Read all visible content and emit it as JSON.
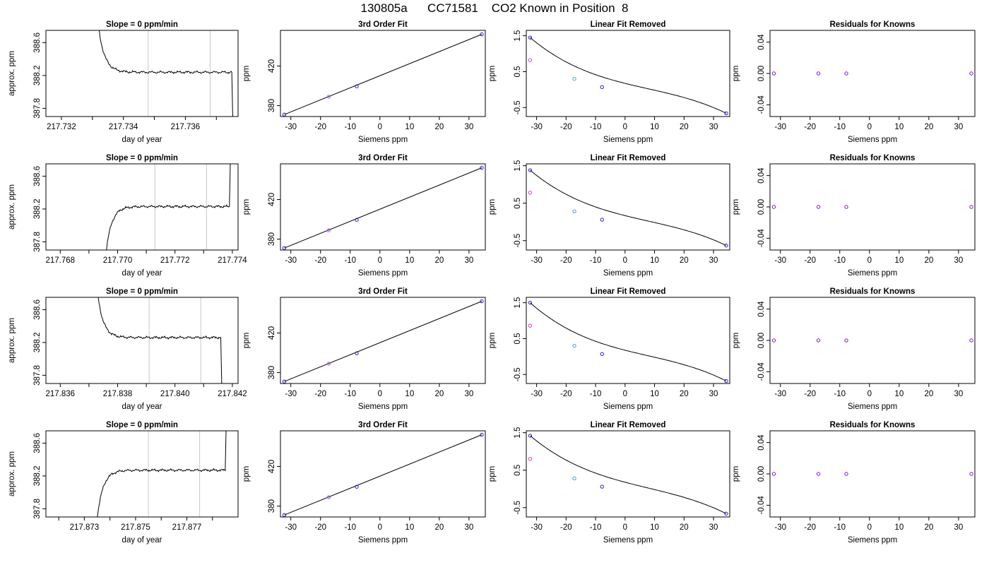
{
  "title": "130805a      CC71581    CO2 Known in Position  8",
  "chart_data": [
    {
      "type": "line",
      "title": "Slope =  0  ppm/min",
      "xlabel": "day of year",
      "ylabel": "approx. ppm",
      "xlim": [
        217.7315,
        217.7377
      ],
      "ylim": [
        387.7,
        388.75
      ],
      "xticks": [
        217.732,
        217.734,
        217.736
      ],
      "xtick_labels": [
        "217.732",
        "217.734",
        "217.736"
      ],
      "xticks_minor": [
        217.733,
        217.735,
        217.737
      ],
      "yticks": [
        387.8,
        388.2,
        388.6
      ],
      "ytick_labels": [
        "387.8",
        "388.2",
        "388.6"
      ],
      "vlines": [
        217.7348,
        217.7368
      ],
      "shape": "decay",
      "x_start": 217.7331,
      "x_end": 217.7375,
      "plateau": 388.24,
      "grid": false
    },
    {
      "type": "line",
      "title": "3rd Order Fit",
      "xlabel": "Siemens ppm",
      "ylabel": "ppm",
      "xlim": [
        -33.5,
        35.5
      ],
      "ylim": [
        369,
        456
      ],
      "xticks": [
        -30,
        -20,
        -10,
        0,
        10,
        20,
        30
      ],
      "xtick_labels": [
        "-30",
        "-20",
        "-10",
        "0",
        "10",
        "20",
        "30"
      ],
      "yticks": [
        380,
        420
      ],
      "ytick_labels": [
        "380",
        "420"
      ],
      "points": [
        {
          "x": -32.2,
          "y": 371.0,
          "color": "#1f1fd0"
        },
        {
          "x": -17.2,
          "y": 389.0,
          "color": "#a05cf0"
        },
        {
          "x": -7.8,
          "y": 399.5,
          "color": "#1f1fd0"
        },
        {
          "x": 34.3,
          "y": 452.0,
          "color": "#1f1fd0"
        }
      ],
      "grid": false
    },
    {
      "type": "line",
      "title": "Linear Fit Removed",
      "xlabel": "Siemens ppm",
      "ylabel": "ppm",
      "xlim": [
        -33.5,
        35.5
      ],
      "ylim": [
        -0.75,
        1.65
      ],
      "xticks": [
        -30,
        -20,
        -10,
        0,
        10,
        20,
        30
      ],
      "xtick_labels": [
        "-30",
        "-20",
        "-10",
        "0",
        "10",
        "20",
        "30"
      ],
      "yticks": [
        -0.5,
        0.5,
        1.5
      ],
      "ytick_labels": [
        "-0.5",
        "0.5",
        "1.5"
      ],
      "curve_cubic": [
        1.45,
        -0.66
      ],
      "points": [
        {
          "x": -32.2,
          "y": 1.45,
          "color": "#1f1fd0"
        },
        {
          "x": -32.2,
          "y": 0.82,
          "color": "#d040d0"
        },
        {
          "x": -17.2,
          "y": 0.3,
          "color": "#3aa0e0"
        },
        {
          "x": -7.8,
          "y": 0.07,
          "color": "#1f1fd0"
        },
        {
          "x": 34.3,
          "y": -0.66,
          "color": "#1f1fd0"
        }
      ],
      "grid": false
    },
    {
      "type": "scatter",
      "title": "Residuals for Knowns",
      "xlabel": "Siemens ppm",
      "ylabel": "ppm",
      "xlim": [
        -33.5,
        35.5
      ],
      "ylim": [
        -0.055,
        0.055
      ],
      "xticks": [
        -30,
        -20,
        -10,
        0,
        10,
        20,
        30
      ],
      "xtick_labels": [
        "-30",
        "-20",
        "-10",
        "0",
        "10",
        "20",
        "30"
      ],
      "yticks": [
        -0.04,
        0.0,
        0.04
      ],
      "ytick_labels": [
        "-0.04",
        "0.00",
        "0.04"
      ],
      "points": [
        {
          "x": -32.2,
          "y": 0.0,
          "color": "#8010e0"
        },
        {
          "x": -17.2,
          "y": 0.0,
          "color": "#8010e0"
        },
        {
          "x": -7.8,
          "y": 0.0,
          "color": "#8010e0"
        },
        {
          "x": 34.3,
          "y": 0.0,
          "color": "#8010e0"
        }
      ],
      "grid": false
    },
    {
      "type": "line",
      "title": "Slope =  0  ppm/min",
      "xlabel": "day of year",
      "ylabel": "approx. ppm",
      "xlim": [
        217.7675,
        217.7742
      ],
      "ylim": [
        387.7,
        388.75
      ],
      "xticks": [
        217.768,
        217.77,
        217.772,
        217.774
      ],
      "xtick_labels": [
        "217.768",
        "217.770",
        "217.772",
        "217.774"
      ],
      "xticks_minor": [
        217.769,
        217.771,
        217.773
      ],
      "yticks": [
        387.8,
        388.2,
        388.6
      ],
      "ytick_labels": [
        "387.8",
        "388.2",
        "388.6"
      ],
      "vlines": [
        217.7713,
        217.7731
      ],
      "shape": "rise",
      "x_start": 217.7695,
      "x_end": 217.7739,
      "plateau": 388.23,
      "grid": false
    },
    {
      "type": "line",
      "title": "3rd Order Fit",
      "xlabel": "Siemens ppm",
      "ylabel": "ppm",
      "xlim": [
        -33.5,
        35.5
      ],
      "ylim": [
        369,
        456
      ],
      "xticks": [
        -30,
        -20,
        -10,
        0,
        10,
        20,
        30
      ],
      "xtick_labels": [
        "-30",
        "-20",
        "-10",
        "0",
        "10",
        "20",
        "30"
      ],
      "yticks": [
        380,
        420
      ],
      "ytick_labels": [
        "380",
        "420"
      ],
      "points": [
        {
          "x": -32.2,
          "y": 371.0,
          "color": "#1f1fd0"
        },
        {
          "x": -17.2,
          "y": 389.0,
          "color": "#a05cf0"
        },
        {
          "x": -7.8,
          "y": 399.5,
          "color": "#1f1fd0"
        },
        {
          "x": 34.3,
          "y": 452.0,
          "color": "#1f1fd0"
        }
      ],
      "grid": false
    },
    {
      "type": "line",
      "title": "Linear Fit Removed",
      "xlabel": "Siemens ppm",
      "ylabel": "ppm",
      "xlim": [
        -33.5,
        35.5
      ],
      "ylim": [
        -0.75,
        1.55
      ],
      "xticks": [
        -30,
        -20,
        -10,
        0,
        10,
        20,
        30
      ],
      "xtick_labels": [
        "-30",
        "-20",
        "-10",
        "0",
        "10",
        "20",
        "30"
      ],
      "yticks": [
        -0.5,
        0.5,
        1.5
      ],
      "ytick_labels": [
        "-0.5",
        "0.5",
        "1.5"
      ],
      "curve_cubic": [
        1.38,
        -0.63
      ],
      "points": [
        {
          "x": -32.2,
          "y": 1.38,
          "color": "#1f1fd0"
        },
        {
          "x": -32.2,
          "y": 0.78,
          "color": "#d040d0"
        },
        {
          "x": -17.2,
          "y": 0.28,
          "color": "#3aa0e0"
        },
        {
          "x": -7.8,
          "y": 0.06,
          "color": "#1f1fd0"
        },
        {
          "x": 34.3,
          "y": -0.63,
          "color": "#1f1fd0"
        }
      ],
      "grid": false
    },
    {
      "type": "scatter",
      "title": "Residuals for Knowns",
      "xlabel": "Siemens ppm",
      "ylabel": "ppm",
      "xlim": [
        -33.5,
        35.5
      ],
      "ylim": [
        -0.055,
        0.055
      ],
      "xticks": [
        -30,
        -20,
        -10,
        0,
        10,
        20,
        30
      ],
      "xtick_labels": [
        "-30",
        "-20",
        "-10",
        "0",
        "10",
        "20",
        "30"
      ],
      "yticks": [
        -0.04,
        0.0,
        0.04
      ],
      "ytick_labels": [
        "-0.04",
        "0.00",
        "0.04"
      ],
      "points": [
        {
          "x": -32.2,
          "y": 0.0,
          "color": "#8010e0"
        },
        {
          "x": -17.2,
          "y": 0.0,
          "color": "#8010e0"
        },
        {
          "x": -7.8,
          "y": 0.0,
          "color": "#8010e0"
        },
        {
          "x": 34.3,
          "y": 0.0,
          "color": "#8010e0"
        }
      ],
      "grid": false
    },
    {
      "type": "line",
      "title": "Slope =  0  ppm/min",
      "xlabel": "day of year",
      "ylabel": "approx. ppm",
      "xlim": [
        217.8355,
        217.8422
      ],
      "ylim": [
        387.7,
        388.75
      ],
      "xticks": [
        217.836,
        217.838,
        217.84,
        217.842
      ],
      "xtick_labels": [
        "217.836",
        "217.838",
        "217.840",
        "217.842"
      ],
      "xticks_minor": [
        217.837,
        217.839,
        217.841
      ],
      "yticks": [
        387.8,
        388.2,
        388.6
      ],
      "ytick_labels": [
        "387.8",
        "388.2",
        "388.6"
      ],
      "vlines": [
        217.8391,
        217.8409
      ],
      "shape": "decay",
      "x_start": 217.8372,
      "x_end": 217.8416,
      "plateau": 388.26,
      "grid": false
    },
    {
      "type": "line",
      "title": "3rd Order Fit",
      "xlabel": "Siemens ppm",
      "ylabel": "ppm",
      "xlim": [
        -33.5,
        35.5
      ],
      "ylim": [
        369,
        456
      ],
      "xticks": [
        -30,
        -20,
        -10,
        0,
        10,
        20,
        30
      ],
      "xtick_labels": [
        "-30",
        "-20",
        "-10",
        "0",
        "10",
        "20",
        "30"
      ],
      "yticks": [
        380,
        420
      ],
      "ytick_labels": [
        "380",
        "420"
      ],
      "points": [
        {
          "x": -32.2,
          "y": 371.0,
          "color": "#1f1fd0"
        },
        {
          "x": -17.2,
          "y": 389.0,
          "color": "#a05cf0"
        },
        {
          "x": -7.8,
          "y": 399.5,
          "color": "#1f1fd0"
        },
        {
          "x": 34.3,
          "y": 452.0,
          "color": "#1f1fd0"
        }
      ],
      "grid": false
    },
    {
      "type": "line",
      "title": "Linear Fit Removed",
      "xlabel": "Siemens ppm",
      "ylabel": "ppm",
      "xlim": [
        -33.5,
        35.5
      ],
      "ylim": [
        -0.75,
        1.65
      ],
      "xticks": [
        -30,
        -20,
        -10,
        0,
        10,
        20,
        30
      ],
      "xtick_labels": [
        "-30",
        "-20",
        "-10",
        "0",
        "10",
        "20",
        "30"
      ],
      "yticks": [
        -0.5,
        0.5,
        1.5
      ],
      "ytick_labels": [
        "-0.5",
        "0.5",
        "1.5"
      ],
      "curve_cubic": [
        1.5,
        -0.68
      ],
      "points": [
        {
          "x": -32.2,
          "y": 1.5,
          "color": "#1f1fd0"
        },
        {
          "x": -32.2,
          "y": 0.86,
          "color": "#d040d0"
        },
        {
          "x": -17.2,
          "y": 0.3,
          "color": "#3aa0e0"
        },
        {
          "x": -7.8,
          "y": 0.07,
          "color": "#1f1fd0"
        },
        {
          "x": 34.3,
          "y": -0.68,
          "color": "#1f1fd0"
        }
      ],
      "grid": false
    },
    {
      "type": "scatter",
      "title": "Residuals for Knowns",
      "xlabel": "Siemens ppm",
      "ylabel": "ppm",
      "xlim": [
        -33.5,
        35.5
      ],
      "ylim": [
        -0.055,
        0.055
      ],
      "xticks": [
        -30,
        -20,
        -10,
        0,
        10,
        20,
        30
      ],
      "xtick_labels": [
        "-30",
        "-20",
        "-10",
        "0",
        "10",
        "20",
        "30"
      ],
      "yticks": [
        -0.04,
        0.0,
        0.04
      ],
      "ytick_labels": [
        "-0.04",
        "0.00",
        "0.04"
      ],
      "points": [
        {
          "x": -32.2,
          "y": 0.0,
          "color": "#8010e0"
        },
        {
          "x": -17.2,
          "y": 0.0,
          "color": "#8010e0"
        },
        {
          "x": -7.8,
          "y": 0.0,
          "color": "#8010e0"
        },
        {
          "x": 34.3,
          "y": 0.0,
          "color": "#8010e0"
        }
      ],
      "grid": false
    },
    {
      "type": "line",
      "title": "Slope =  0  ppm/min",
      "xlabel": "day of year",
      "ylabel": "approx. ppm",
      "xlim": [
        217.8715,
        217.879
      ],
      "ylim": [
        387.7,
        388.75
      ],
      "xticks": [
        217.873,
        217.875,
        217.877
      ],
      "xtick_labels": [
        "217.873",
        "217.875",
        "217.877"
      ],
      "xticks_minor": [
        217.872,
        217.874,
        217.876,
        217.878
      ],
      "yticks": [
        387.8,
        388.2,
        388.6
      ],
      "ytick_labels": [
        "387.8",
        "388.2",
        "388.6"
      ],
      "vlines": [
        217.8755,
        217.8775
      ],
      "shape": "rise",
      "x_start": 217.8734,
      "x_end": 217.8785,
      "plateau": 388.27,
      "grid": false
    },
    {
      "type": "line",
      "title": "3rd Order Fit",
      "xlabel": "Siemens ppm",
      "ylabel": "ppm",
      "xlim": [
        -33.5,
        35.5
      ],
      "ylim": [
        369,
        456
      ],
      "xticks": [
        -30,
        -20,
        -10,
        0,
        10,
        20,
        30
      ],
      "xtick_labels": [
        "-30",
        "-20",
        "-10",
        "0",
        "10",
        "20",
        "30"
      ],
      "yticks": [
        380,
        420
      ],
      "ytick_labels": [
        "380",
        "420"
      ],
      "points": [
        {
          "x": -32.2,
          "y": 371.0,
          "color": "#1f1fd0"
        },
        {
          "x": -17.2,
          "y": 389.0,
          "color": "#a05cf0"
        },
        {
          "x": -7.8,
          "y": 399.5,
          "color": "#1f1fd0"
        },
        {
          "x": 34.3,
          "y": 452.0,
          "color": "#1f1fd0"
        }
      ],
      "grid": false
    },
    {
      "type": "line",
      "title": "Linear Fit Removed",
      "xlabel": "Siemens ppm",
      "ylabel": "ppm",
      "xlim": [
        -33.5,
        35.5
      ],
      "ylim": [
        -0.75,
        1.55
      ],
      "xticks": [
        -30,
        -20,
        -10,
        0,
        10,
        20,
        30
      ],
      "xtick_labels": [
        "-30",
        "-20",
        "-10",
        "0",
        "10",
        "20",
        "30"
      ],
      "yticks": [
        -0.5,
        0.5,
        1.5
      ],
      "ytick_labels": [
        "-0.5",
        "0.5",
        "1.5"
      ],
      "curve_cubic": [
        1.42,
        -0.66
      ],
      "points": [
        {
          "x": -32.2,
          "y": 1.42,
          "color": "#1f1fd0"
        },
        {
          "x": -32.2,
          "y": 0.8,
          "color": "#d040d0"
        },
        {
          "x": -17.2,
          "y": 0.28,
          "color": "#3aa0e0"
        },
        {
          "x": -7.8,
          "y": 0.06,
          "color": "#1f1fd0"
        },
        {
          "x": 34.3,
          "y": -0.66,
          "color": "#1f1fd0"
        }
      ],
      "grid": false
    },
    {
      "type": "scatter",
      "title": "Residuals for Knowns",
      "xlabel": "Siemens ppm",
      "ylabel": "ppm",
      "xlim": [
        -33.5,
        35.5
      ],
      "ylim": [
        -0.055,
        0.055
      ],
      "xticks": [
        -30,
        -20,
        -10,
        0,
        10,
        20,
        30
      ],
      "xtick_labels": [
        "-30",
        "-20",
        "-10",
        "0",
        "10",
        "20",
        "30"
      ],
      "yticks": [
        -0.04,
        0.0,
        0.04
      ],
      "ytick_labels": [
        "-0.04",
        "0.00",
        "0.04"
      ],
      "points": [
        {
          "x": -32.2,
          "y": 0.0,
          "color": "#8010e0"
        },
        {
          "x": -17.2,
          "y": 0.0,
          "color": "#8010e0"
        },
        {
          "x": -7.8,
          "y": 0.0,
          "color": "#8010e0"
        },
        {
          "x": 34.3,
          "y": 0.0,
          "color": "#8010e0"
        }
      ],
      "grid": false
    }
  ]
}
